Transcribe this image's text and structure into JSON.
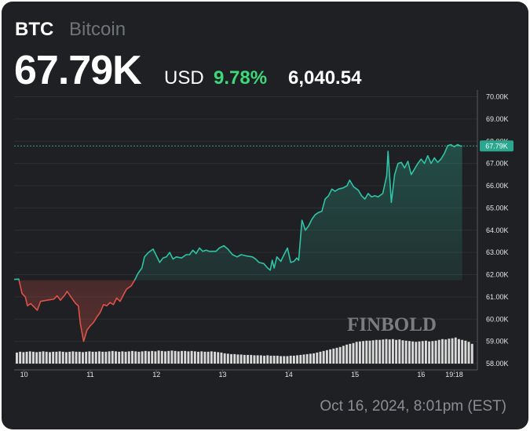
{
  "header": {
    "ticker": "BTC",
    "name": "Bitcoin",
    "price": "67.79K",
    "currency": "USD",
    "change_pct": "9.78%",
    "change_abs": "6,040.54"
  },
  "timestamp": "Oct 16, 2024, 8:01pm (EST)",
  "watermark": "FINBOLD",
  "colors": {
    "background": "#1f2023",
    "up": "#2ec4a6",
    "down": "#e0514a",
    "positive_text": "#3dd879",
    "volume": "#d9d9d9"
  },
  "chart_data": {
    "type": "line",
    "title": "",
    "xlabel": "",
    "ylabel": "",
    "x_ticks": [
      "10",
      "11",
      "12",
      "13",
      "14",
      "15",
      "16",
      "19:18"
    ],
    "y_ticks": [
      "58.00K",
      "59.00K",
      "60.00K",
      "61.00K",
      "62.00K",
      "63.00K",
      "64.00K",
      "65.00K",
      "66.00K",
      "67.00K",
      "68.00K",
      "69.00K",
      "70.00K"
    ],
    "ylim": [
      58000,
      70300
    ],
    "xlim": [
      9.85,
      16.85
    ],
    "baseline": 61750,
    "last_price_label": "67.79K",
    "last_price": 67790,
    "grid": true,
    "series": [
      {
        "values": [
          [
            9.85,
            61790
          ],
          [
            9.92,
            61800
          ],
          [
            9.97,
            61150
          ],
          [
            10.02,
            61000
          ],
          [
            10.05,
            60600
          ],
          [
            10.1,
            60700
          ],
          [
            10.15,
            60550
          ],
          [
            10.2,
            60400
          ],
          [
            10.25,
            60800
          ],
          [
            10.35,
            60850
          ],
          [
            10.45,
            60900
          ],
          [
            10.5,
            61050
          ],
          [
            10.55,
            60850
          ],
          [
            10.62,
            61100
          ],
          [
            10.65,
            61250
          ],
          [
            10.72,
            60950
          ],
          [
            10.78,
            60700
          ],
          [
            10.82,
            60600
          ],
          [
            10.85,
            59800
          ],
          [
            10.9,
            59000
          ],
          [
            10.95,
            59500
          ],
          [
            11.0,
            59700
          ],
          [
            11.05,
            59850
          ],
          [
            11.1,
            60100
          ],
          [
            11.15,
            60300
          ],
          [
            11.2,
            60650
          ],
          [
            11.25,
            60600
          ],
          [
            11.3,
            60750
          ],
          [
            11.35,
            60650
          ],
          [
            11.4,
            60950
          ],
          [
            11.45,
            60800
          ],
          [
            11.52,
            61200
          ],
          [
            11.55,
            61350
          ],
          [
            11.62,
            61500
          ],
          [
            11.68,
            61800
          ],
          [
            11.72,
            62050
          ],
          [
            11.78,
            62300
          ],
          [
            11.82,
            62800
          ],
          [
            11.88,
            63000
          ],
          [
            11.95,
            63150
          ],
          [
            12.0,
            62850
          ],
          [
            12.05,
            62550
          ],
          [
            12.1,
            62750
          ],
          [
            12.15,
            62800
          ],
          [
            12.2,
            63000
          ],
          [
            12.25,
            62700
          ],
          [
            12.3,
            62800
          ],
          [
            12.38,
            62750
          ],
          [
            12.45,
            62900
          ],
          [
            12.5,
            62900
          ],
          [
            12.55,
            63100
          ],
          [
            12.6,
            62950
          ],
          [
            12.65,
            63200
          ],
          [
            12.7,
            63050
          ],
          [
            12.75,
            63100
          ],
          [
            12.8,
            63050
          ],
          [
            12.9,
            63050
          ],
          [
            12.95,
            63200
          ],
          [
            13.02,
            63300
          ],
          [
            13.08,
            63150
          ],
          [
            13.15,
            62900
          ],
          [
            13.22,
            62800
          ],
          [
            13.28,
            62900
          ],
          [
            13.35,
            62850
          ],
          [
            13.45,
            62800
          ],
          [
            13.5,
            62700
          ],
          [
            13.55,
            62550
          ],
          [
            13.62,
            62500
          ],
          [
            13.68,
            62300
          ],
          [
            13.72,
            62200
          ],
          [
            13.75,
            62650
          ],
          [
            13.78,
            62300
          ],
          [
            13.82,
            62800
          ],
          [
            13.88,
            62600
          ],
          [
            13.92,
            62850
          ],
          [
            13.98,
            63200
          ],
          [
            14.03,
            62550
          ],
          [
            14.08,
            62600
          ],
          [
            14.12,
            62750
          ],
          [
            14.15,
            62650
          ],
          [
            14.2,
            64450
          ],
          [
            14.25,
            64000
          ],
          [
            14.3,
            64200
          ],
          [
            14.35,
            64500
          ],
          [
            14.4,
            64700
          ],
          [
            14.45,
            64800
          ],
          [
            14.5,
            64850
          ],
          [
            14.55,
            65400
          ],
          [
            14.6,
            65550
          ],
          [
            14.65,
            65850
          ],
          [
            14.7,
            65750
          ],
          [
            14.75,
            65850
          ],
          [
            14.82,
            65900
          ],
          [
            14.88,
            66000
          ],
          [
            14.92,
            66250
          ],
          [
            14.98,
            65950
          ],
          [
            15.05,
            65800
          ],
          [
            15.1,
            65550
          ],
          [
            15.15,
            65400
          ],
          [
            15.2,
            65650
          ],
          [
            15.25,
            65500
          ],
          [
            15.3,
            65550
          ],
          [
            15.35,
            65500
          ],
          [
            15.42,
            65650
          ],
          [
            15.48,
            66450
          ],
          [
            15.5,
            67550
          ],
          [
            15.55,
            65250
          ],
          [
            15.6,
            66500
          ],
          [
            15.65,
            67000
          ],
          [
            15.7,
            67050
          ],
          [
            15.75,
            66800
          ],
          [
            15.8,
            67100
          ],
          [
            15.85,
            66500
          ],
          [
            15.9,
            66750
          ],
          [
            15.95,
            67000
          ],
          [
            16.0,
            67200
          ],
          [
            16.05,
            67000
          ],
          [
            16.1,
            67350
          ],
          [
            16.15,
            67000
          ],
          [
            16.2,
            67250
          ],
          [
            16.25,
            67050
          ],
          [
            16.3,
            67200
          ],
          [
            16.35,
            67450
          ],
          [
            16.4,
            67800
          ],
          [
            16.45,
            67850
          ],
          [
            16.5,
            67750
          ],
          [
            16.55,
            67850
          ],
          [
            16.6,
            67780
          ],
          [
            16.62,
            67790
          ]
        ]
      }
    ],
    "volume_bars": [
      0.28,
      0.3,
      0.29,
      0.3,
      0.31,
      0.3,
      0.29,
      0.3,
      0.31,
      0.3,
      0.29,
      0.3,
      0.3,
      0.31,
      0.3,
      0.29,
      0.3,
      0.31,
      0.3,
      0.3,
      0.29,
      0.3,
      0.31,
      0.3,
      0.3,
      0.31,
      0.3,
      0.3,
      0.31,
      0.32,
      0.31,
      0.3,
      0.31,
      0.3,
      0.31,
      0.32,
      0.31,
      0.3,
      0.31,
      0.32,
      0.31,
      0.32,
      0.31,
      0.33,
      0.32,
      0.31,
      0.32,
      0.33,
      0.32,
      0.31,
      0.32,
      0.32,
      0.31,
      0.32,
      0.31,
      0.3,
      0.31,
      0.3,
      0.3,
      0.31,
      0.3,
      0.29,
      0.28,
      0.26,
      0.25,
      0.24,
      0.24,
      0.23,
      0.23,
      0.22,
      0.22,
      0.22,
      0.21,
      0.21,
      0.21,
      0.2,
      0.21,
      0.2,
      0.2,
      0.2,
      0.19,
      0.19,
      0.19,
      0.2,
      0.2,
      0.21,
      0.22,
      0.23,
      0.24,
      0.25,
      0.26,
      0.28,
      0.3,
      0.32,
      0.34,
      0.36,
      0.38,
      0.4,
      0.42,
      0.45,
      0.48,
      0.5,
      0.52,
      0.55,
      0.56,
      0.57,
      0.58,
      0.58,
      0.59,
      0.6,
      0.6,
      0.61,
      0.62,
      0.61,
      0.62,
      0.6,
      0.61,
      0.59,
      0.58,
      0.57,
      0.56,
      0.55,
      0.56,
      0.57,
      0.58,
      0.56,
      0.57,
      0.58,
      0.6,
      0.62,
      0.61,
      0.63,
      0.64,
      0.66,
      0.62,
      0.6,
      0.58,
      0.55,
      0.5
    ]
  }
}
